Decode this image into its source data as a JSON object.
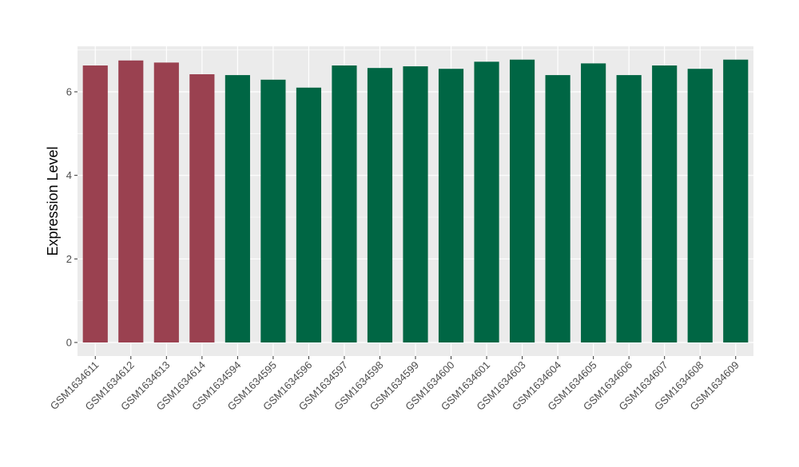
{
  "chart_data": {
    "type": "bar",
    "title": "",
    "xlabel": "",
    "ylabel": "Expression Level",
    "ylim": [
      0,
      7.06
    ],
    "yticks": [
      0,
      2,
      4,
      6
    ],
    "grid": true,
    "background_color": "#ebebeb",
    "categories": [
      "GSM1634611",
      "GSM1634612",
      "GSM1634613",
      "GSM1634614",
      "GSM1634594",
      "GSM1634595",
      "GSM1634596",
      "GSM1634597",
      "GSM1634598",
      "GSM1634599",
      "GSM1634600",
      "GSM1634601",
      "GSM1634603",
      "GSM1634604",
      "GSM1634605",
      "GSM1634606",
      "GSM1634607",
      "GSM1634608",
      "GSM1634609"
    ],
    "values": [
      6.63,
      6.75,
      6.7,
      6.42,
      6.4,
      6.29,
      6.1,
      6.63,
      6.57,
      6.61,
      6.55,
      6.72,
      6.77,
      6.4,
      6.68,
      6.4,
      6.63,
      6.55,
      6.77
    ],
    "groups": [
      "g1",
      "g1",
      "g1",
      "g1",
      "g2",
      "g2",
      "g2",
      "g2",
      "g2",
      "g2",
      "g2",
      "g2",
      "g2",
      "g2",
      "g2",
      "g2",
      "g2",
      "g2",
      "g2"
    ],
    "group_colors": {
      "g1": "#9a4150",
      "g2": "#006644"
    }
  }
}
